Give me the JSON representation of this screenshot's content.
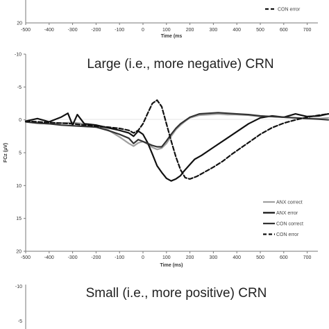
{
  "chart_data": [
    {
      "type": "line",
      "title": "",
      "xlabel": "Time (ms",
      "xlim": [
        -500,
        800
      ],
      "xticks": [
        "-500",
        "-400",
        "-300",
        "-200",
        "-100",
        "0",
        "100",
        "200",
        "300",
        "400",
        "500",
        "600",
        "700"
      ],
      "yticks_visible": [
        "20"
      ],
      "legend": {
        "position": "right",
        "entries": [
          {
            "name": "CON error",
            "color": "#111111",
            "dash": true
          }
        ]
      }
    },
    {
      "type": "line",
      "title": "Large (i.e., more negative) CRN",
      "xlabel": "Time (ms)",
      "ylabel": "FCz (µV)",
      "xlim": [
        -500,
        800
      ],
      "ylim": [
        20,
        -10
      ],
      "y_inverted": true,
      "xticks": [
        "-500",
        "-400",
        "-300",
        "-200",
        "-100",
        "0",
        "100",
        "200",
        "300",
        "400",
        "500",
        "600",
        "700"
      ],
      "yticks": [
        "-10",
        "-5",
        "0",
        "5",
        "10",
        "15",
        "20"
      ],
      "legend": {
        "position": "bottom-right"
      },
      "series": [
        {
          "name": "ANX correct",
          "color": "#a0a0a0",
          "dash": false,
          "width": 2.2,
          "x": [
            -500,
            -450,
            -400,
            -350,
            -300,
            -250,
            -200,
            -150,
            -100,
            -60,
            -40,
            -20,
            0,
            20,
            40,
            60,
            80,
            100,
            120,
            140,
            160,
            180,
            200,
            240,
            280,
            320,
            360,
            400,
            450,
            500,
            550,
            600,
            650,
            700,
            750,
            790
          ],
          "y": [
            0.3,
            0.5,
            0.6,
            0.5,
            0.4,
            0.6,
            0.8,
            1.5,
            2.6,
            3.6,
            4.0,
            3.5,
            3.3,
            3.7,
            4.2,
            4.5,
            4.3,
            3.6,
            2.5,
            1.5,
            0.8,
            0.2,
            -0.3,
            -0.7,
            -0.8,
            -0.9,
            -0.8,
            -0.8,
            -0.7,
            -0.5,
            -0.5,
            -0.4,
            -0.3,
            -0.2,
            -0.2,
            -0.3
          ]
        },
        {
          "name": "ANX error",
          "color": "#111111",
          "dash": false,
          "width": 2.2,
          "x": [
            -500,
            -450,
            -400,
            -350,
            -320,
            -300,
            -280,
            -250,
            -200,
            -150,
            -100,
            -60,
            -40,
            -20,
            0,
            20,
            40,
            60,
            80,
            100,
            120,
            140,
            160,
            170,
            180,
            200,
            220,
            250,
            300,
            350,
            400,
            450,
            500,
            550,
            600,
            650,
            700,
            750,
            790
          ],
          "y": [
            0.2,
            -0.2,
            0.3,
            -0.4,
            -1.0,
            0.8,
            -0.8,
            0.6,
            0.8,
            1.2,
            1.6,
            2.0,
            2.5,
            1.7,
            2.2,
            3.5,
            5.2,
            7.0,
            8.0,
            8.9,
            9.3,
            9.0,
            8.5,
            8.0,
            7.6,
            6.8,
            6.0,
            5.4,
            4.2,
            3.0,
            1.8,
            0.6,
            -0.3,
            -0.6,
            -0.4,
            -0.9,
            -0.5,
            -0.6,
            -0.9
          ]
        },
        {
          "name": "CON correct",
          "color": "#333333",
          "dash": false,
          "width": 2.2,
          "x": [
            -500,
            -450,
            -400,
            -350,
            -300,
            -250,
            -200,
            -150,
            -100,
            -60,
            -40,
            -20,
            0,
            20,
            40,
            60,
            80,
            100,
            120,
            140,
            160,
            200,
            240,
            280,
            320,
            360,
            400,
            450,
            500,
            550,
            600,
            650,
            700,
            750,
            790
          ],
          "y": [
            0.3,
            0.5,
            0.6,
            0.8,
            0.9,
            1.0,
            1.1,
            1.6,
            2.2,
            2.8,
            3.6,
            3.0,
            3.3,
            3.6,
            3.9,
            4.1,
            4.1,
            3.2,
            2.2,
            1.3,
            0.6,
            -0.4,
            -0.9,
            -1.0,
            -1.1,
            -1.0,
            -0.9,
            -0.8,
            -0.6,
            -0.5,
            -0.4,
            -0.3,
            -0.2,
            -0.1,
            0.0
          ]
        },
        {
          "name": "CON error",
          "color": "#111111",
          "dash": true,
          "width": 2.2,
          "x": [
            -500,
            -450,
            -400,
            -350,
            -300,
            -250,
            -200,
            -150,
            -100,
            -60,
            -40,
            -20,
            0,
            20,
            40,
            60,
            80,
            100,
            120,
            140,
            160,
            180,
            200,
            230,
            260,
            300,
            340,
            380,
            420,
            460,
            500,
            550,
            600,
            650,
            700,
            750,
            790
          ],
          "y": [
            0.2,
            0.3,
            0.4,
            0.5,
            0.6,
            0.8,
            1.0,
            1.1,
            1.3,
            1.6,
            2.0,
            1.6,
            0.6,
            -1.0,
            -2.5,
            -3.0,
            -2.0,
            0.6,
            3.2,
            5.6,
            7.6,
            8.8,
            9.0,
            8.6,
            8.0,
            7.2,
            6.3,
            5.2,
            4.2,
            3.2,
            2.2,
            1.2,
            0.5,
            0.0,
            -0.4,
            -0.7,
            -0.9
          ]
        }
      ]
    },
    {
      "type": "line",
      "title": "Small (i.e., more positive) CRN",
      "yticks_visible": [
        "-10",
        "-5"
      ]
    }
  ]
}
